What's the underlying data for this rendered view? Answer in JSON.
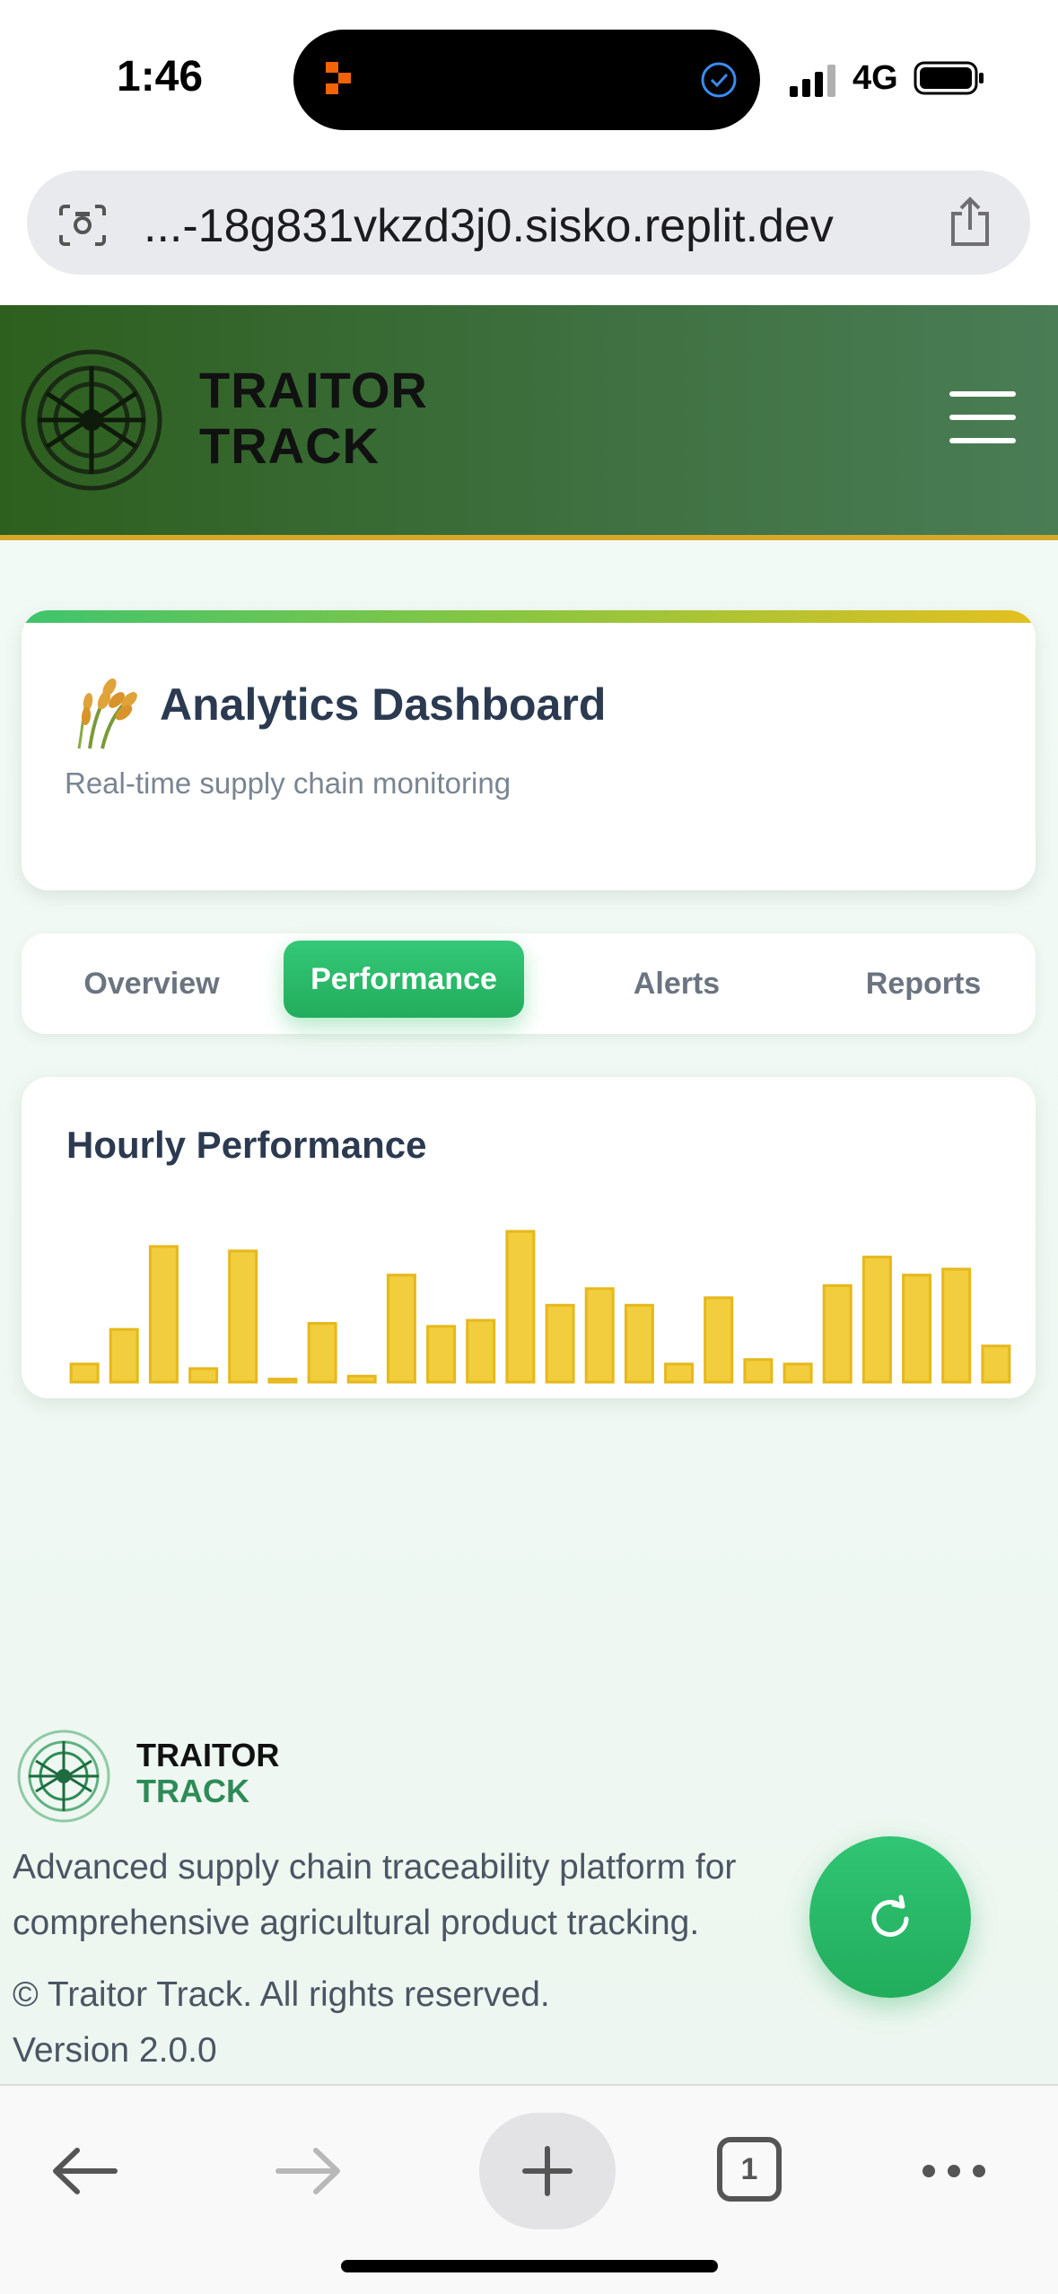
{
  "status_bar": {
    "time": "1:46",
    "network": "4G"
  },
  "browser": {
    "url": "...-18g831vkzd3j0.sisko.replit.dev",
    "tab_count": "1"
  },
  "app": {
    "brand_line1": "TRAITOR",
    "brand_line2": "TRACK"
  },
  "dashboard": {
    "title": "Analytics Dashboard",
    "subtitle": "Real-time supply chain monitoring",
    "icon": "wheat-icon"
  },
  "tabs": [
    {
      "label": "Overview",
      "active": false
    },
    {
      "label": "Performance",
      "active": true
    },
    {
      "label": "Alerts",
      "active": false
    },
    {
      "label": "Reports",
      "active": false
    }
  ],
  "chart_data": {
    "type": "bar",
    "title": "Hourly Performance",
    "values": [
      12,
      35,
      90,
      9,
      87,
      2,
      39,
      4,
      71,
      37,
      41,
      100,
      51,
      62,
      51,
      12,
      56,
      15,
      12,
      64,
      83,
      71,
      75,
      24
    ],
    "ylim": [
      0,
      100
    ],
    "color": "#f2cd3d",
    "border_color": "#e6b81c",
    "grid": false,
    "axes_visible": false
  },
  "footer": {
    "brand_line1": "TRAITOR",
    "brand_line2": "TRACK",
    "description": "Advanced supply chain traceability platform for comprehensive agricultural product tracking.",
    "copyright": "© Traitor Track. All rights reserved.",
    "version": "Version 2.0.0"
  },
  "colors": {
    "header_start": "#2d5f1e",
    "header_end": "#4a7d55",
    "header_border": "#d4a82a",
    "accent_green": "#22ad5c",
    "brand_green": "#2e8b57"
  }
}
